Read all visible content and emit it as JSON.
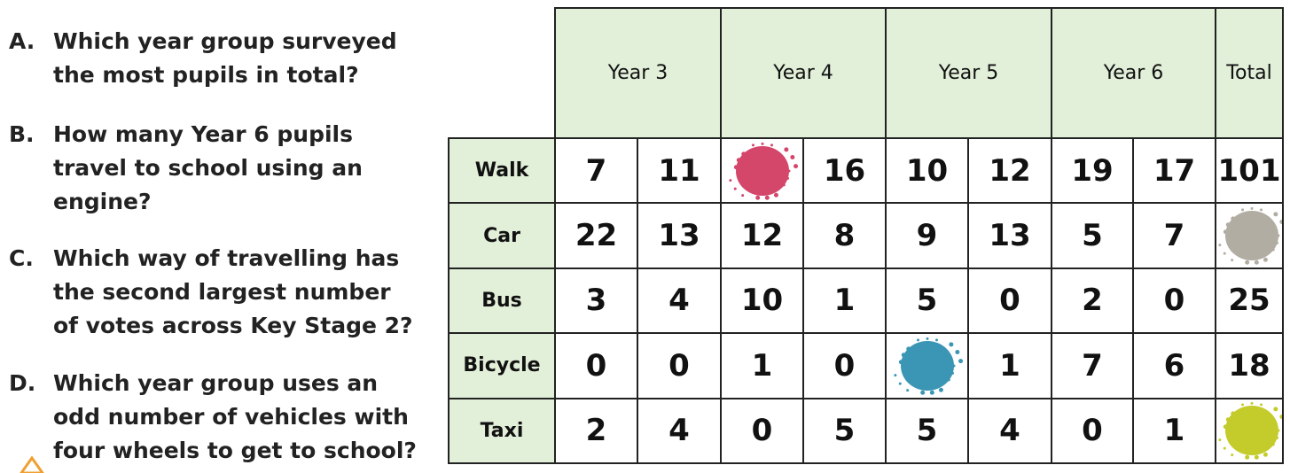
{
  "questions": [
    {
      "letter": "A.",
      "lines": [
        "Which year group surveyed",
        "the most pupils in total?"
      ]
    },
    {
      "letter": "B.",
      "lines": [
        "How many Year 6 pupils",
        "travel to school using an",
        "engine?"
      ]
    },
    {
      "letter": "C.",
      "lines": [
        "Which way of travelling has",
        "the second largest number",
        "of votes across Key Stage 2?"
      ]
    },
    {
      "letter": "D.",
      "lines": [
        "Which year group uses an",
        "odd number of vehicles with",
        "four wheels to get to school?"
      ]
    }
  ],
  "table": {
    "header": [
      "Year 3",
      "Year 4",
      "Year 5",
      "Year 6",
      "Total"
    ],
    "rows": [
      {
        "label": "Walk",
        "values": [
          7,
          11,
          null,
          16,
          10,
          12,
          19,
          17,
          101
        ]
      },
      {
        "label": "Car",
        "values": [
          22,
          13,
          12,
          8,
          9,
          13,
          5,
          7,
          null
        ]
      },
      {
        "label": "Bus",
        "values": [
          3,
          4,
          10,
          1,
          5,
          0,
          2,
          0,
          25
        ]
      },
      {
        "label": "Bicycle",
        "values": [
          0,
          0,
          1,
          0,
          null,
          1,
          7,
          6,
          18
        ]
      },
      {
        "label": "Taxi",
        "values": [
          2,
          4,
          0,
          5,
          5,
          4,
          0,
          1,
          null
        ]
      }
    ]
  }
}
